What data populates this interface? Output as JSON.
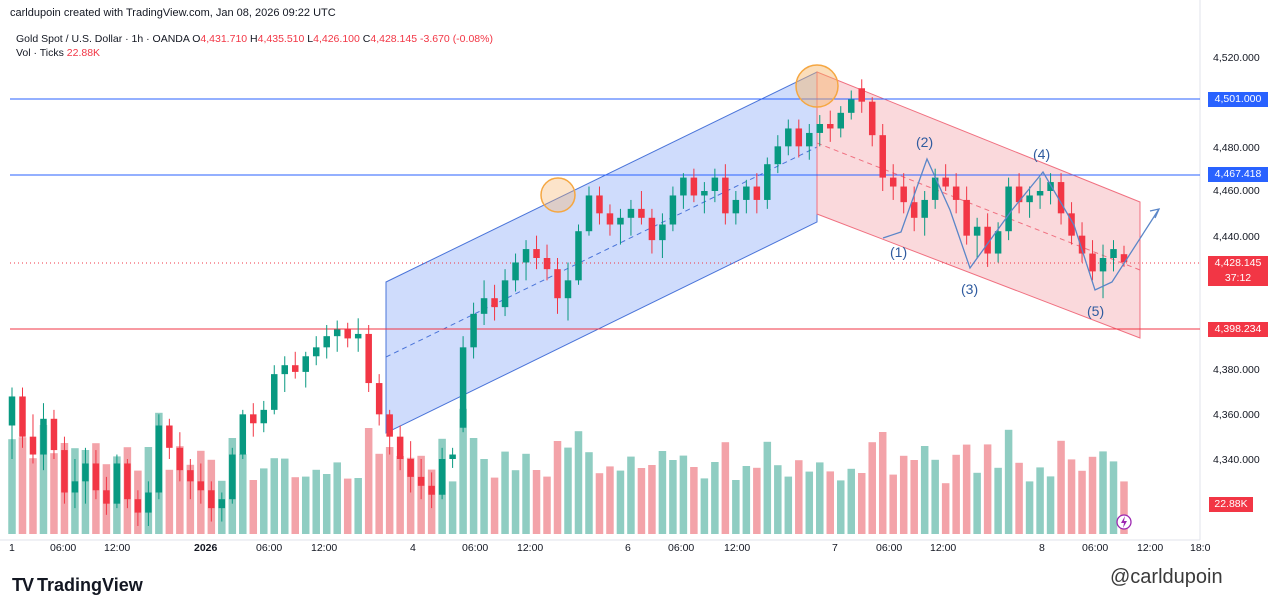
{
  "header": {
    "created_line": "carldupoin created with TradingView.com, Jan 08, 2026 09:22 UTC"
  },
  "legend": {
    "symbol": "Gold Spot / U.S. Dollar · 1h · OANDA",
    "open_label": "O",
    "open": "4,431.710",
    "high_label": "H",
    "high": "4,435.510",
    "low_label": "L",
    "low": "4,426.100",
    "close_label": "C",
    "close": "4,428.145",
    "change": "-3.670 (-0.08%)",
    "vol_label": "Vol · Ticks",
    "vol": "22.88K"
  },
  "price_labels": {
    "resistance_upper": "4,501.000",
    "resistance_lower": "4,467.418",
    "current": "4,428.145",
    "countdown": "37:12",
    "support": "4,398.234",
    "volume": "22.88K"
  },
  "annotations": {
    "w1": "(1)",
    "w2": "(2)",
    "w3": "(3)",
    "w4": "(4)",
    "w5": "(5)"
  },
  "footer": {
    "brand": "TradingView",
    "watermark": "@carldupoin"
  },
  "colors": {
    "up": "#089981",
    "down": "#f23645",
    "up_volume": "#8fcdc2",
    "down_volume": "#f3a3a9",
    "blue_line": "#2962ff",
    "red_line": "#f23645",
    "channel_blue": "#c7d6fb",
    "channel_red": "#f9cfd3",
    "circle": "#f5a742"
  },
  "chart_data": {
    "type": "candlestick",
    "symbol": "Gold Spot / U.S. Dollar",
    "timeframe": "1h",
    "y_ticks": [
      "4,520.000",
      "4,480.000",
      "4,460.000",
      "4,440.000",
      "4,380.000",
      "4,360.000",
      "4,340.000"
    ],
    "ylim": [
      4320,
      4530
    ],
    "x_ticks": [
      "1",
      "06:00",
      "12:00",
      "2026",
      "06:00",
      "12:00",
      "4",
      "06:00",
      "12:00",
      "6",
      "06:00",
      "12:00",
      "7",
      "06:00",
      "12:00",
      "8",
      "06:00",
      "12:00",
      "18:0"
    ],
    "horizontal_levels": [
      4501.0,
      4467.418,
      4398.234
    ],
    "current_price": 4428.145,
    "candles": [
      [
        4355,
        4372,
        4340,
        4368
      ],
      [
        4368,
        4372,
        4345,
        4350
      ],
      [
        4350,
        4360,
        4338,
        4342
      ],
      [
        4342,
        4365,
        4335,
        4358
      ],
      [
        4358,
        4362,
        4340,
        4344
      ],
      [
        4344,
        4350,
        4320,
        4325
      ],
      [
        4325,
        4340,
        4318,
        4330
      ],
      [
        4330,
        4345,
        4320,
        4338
      ],
      [
        4338,
        4344,
        4322,
        4326
      ],
      [
        4326,
        4332,
        4315,
        4320
      ],
      [
        4320,
        4342,
        4318,
        4338
      ],
      [
        4338,
        4340,
        4318,
        4322
      ],
      [
        4322,
        4326,
        4310,
        4316
      ],
      [
        4316,
        4330,
        4310,
        4325
      ],
      [
        4325,
        4360,
        4322,
        4355
      ],
      [
        4355,
        4358,
        4340,
        4345
      ],
      [
        4345,
        4352,
        4330,
        4335
      ],
      [
        4335,
        4340,
        4322,
        4330
      ],
      [
        4330,
        4338,
        4320,
        4326
      ],
      [
        4326,
        4330,
        4312,
        4318
      ],
      [
        4318,
        4325,
        4312,
        4322
      ],
      [
        4322,
        4345,
        4320,
        4342
      ],
      [
        4342,
        4362,
        4340,
        4360
      ],
      [
        4360,
        4365,
        4350,
        4356
      ],
      [
        4356,
        4366,
        4352,
        4362
      ],
      [
        4362,
        4382,
        4360,
        4378
      ],
      [
        4378,
        4386,
        4370,
        4382
      ],
      [
        4382,
        4388,
        4376,
        4379
      ],
      [
        4379,
        4388,
        4372,
        4386
      ],
      [
        4386,
        4395,
        4382,
        4390
      ],
      [
        4390,
        4400,
        4385,
        4395
      ],
      [
        4395,
        4402,
        4388,
        4398
      ],
      [
        4398,
        4401,
        4390,
        4394
      ],
      [
        4394,
        4403,
        4388,
        4396
      ],
      [
        4396,
        4400,
        4370,
        4374
      ],
      [
        4374,
        4378,
        4355,
        4360
      ],
      [
        4360,
        4362,
        4342,
        4350
      ],
      [
        4350,
        4355,
        4335,
        4340
      ],
      [
        4340,
        4348,
        4325,
        4332
      ],
      [
        4332,
        4340,
        4322,
        4328
      ],
      [
        4328,
        4334,
        4318,
        4324
      ],
      [
        4324,
        4345,
        4322,
        4340
      ],
      [
        4340,
        4345,
        4336,
        4342
      ],
      [
        4354,
        4395,
        4352,
        4390
      ],
      [
        4390,
        4410,
        4385,
        4405
      ],
      [
        4405,
        4420,
        4400,
        4412
      ],
      [
        4412,
        4418,
        4402,
        4408
      ],
      [
        4408,
        4425,
        4404,
        4420
      ],
      [
        4420,
        4432,
        4415,
        4428
      ],
      [
        4428,
        4438,
        4420,
        4434
      ],
      [
        4434,
        4440,
        4425,
        4430
      ],
      [
        4430,
        4436,
        4420,
        4425
      ],
      [
        4425,
        4430,
        4405,
        4412
      ],
      [
        4412,
        4428,
        4402,
        4420
      ],
      [
        4420,
        4445,
        4418,
        4442
      ],
      [
        4442,
        4462,
        4440,
        4458
      ],
      [
        4458,
        4462,
        4445,
        4450
      ],
      [
        4450,
        4454,
        4440,
        4445
      ],
      [
        4445,
        4452,
        4436,
        4448
      ],
      [
        4448,
        4456,
        4440,
        4452
      ],
      [
        4452,
        4460,
        4445,
        4448
      ],
      [
        4448,
        4452,
        4432,
        4438
      ],
      [
        4438,
        4450,
        4430,
        4445
      ],
      [
        4445,
        4462,
        4442,
        4458
      ],
      [
        4458,
        4468,
        4452,
        4466
      ],
      [
        4466,
        4470,
        4455,
        4458
      ],
      [
        4458,
        4464,
        4450,
        4460
      ],
      [
        4460,
        4470,
        4455,
        4466
      ],
      [
        4466,
        4472,
        4445,
        4450
      ],
      [
        4450,
        4460,
        4445,
        4456
      ],
      [
        4456,
        4465,
        4450,
        4462
      ],
      [
        4462,
        4468,
        4450,
        4456
      ],
      [
        4456,
        4475,
        4452,
        4472
      ],
      [
        4472,
        4485,
        4468,
        4480
      ],
      [
        4480,
        4492,
        4476,
        4488
      ],
      [
        4488,
        4492,
        4475,
        4480
      ],
      [
        4480,
        4490,
        4474,
        4486
      ],
      [
        4486,
        4494,
        4480,
        4490
      ],
      [
        4490,
        4496,
        4482,
        4488
      ],
      [
        4488,
        4498,
        4484,
        4495
      ],
      [
        4495,
        4505,
        4492,
        4501
      ],
      [
        4506,
        4510,
        4495,
        4500
      ],
      [
        4500,
        4502,
        4480,
        4485
      ],
      [
        4485,
        4490,
        4460,
        4466
      ],
      [
        4466,
        4472,
        4456,
        4462
      ],
      [
        4462,
        4468,
        4450,
        4455
      ],
      [
        4455,
        4462,
        4442,
        4448
      ],
      [
        4448,
        4460,
        4440,
        4456
      ],
      [
        4456,
        4470,
        4452,
        4466
      ],
      [
        4466,
        4472,
        4460,
        4462
      ],
      [
        4462,
        4468,
        4450,
        4456
      ],
      [
        4456,
        4462,
        4436,
        4440
      ],
      [
        4440,
        4448,
        4430,
        4444
      ],
      [
        4444,
        4450,
        4426,
        4432
      ],
      [
        4432,
        4446,
        4428,
        4442
      ],
      [
        4442,
        4466,
        4438,
        4462
      ],
      [
        4462,
        4468,
        4450,
        4455
      ],
      [
        4455,
        4462,
        4448,
        4458
      ],
      [
        4458,
        4466,
        4452,
        4460
      ],
      [
        4460,
        4468,
        4454,
        4464
      ],
      [
        4464,
        4468,
        4445,
        4450
      ],
      [
        4450,
        4455,
        4436,
        4440
      ],
      [
        4440,
        4446,
        4428,
        4432
      ],
      [
        4432,
        4438,
        4420,
        4424
      ],
      [
        4424,
        4436,
        4412,
        4430
      ],
      [
        4430,
        4438,
        4424,
        4434
      ],
      [
        4431.71,
        4435.51,
        4426.1,
        4428.145
      ]
    ],
    "volume_unit": "ticks",
    "last_volume": "22.88K",
    "annotations": [
      "(1)",
      "(2)",
      "(3)",
      "(4)",
      "(5)"
    ]
  }
}
